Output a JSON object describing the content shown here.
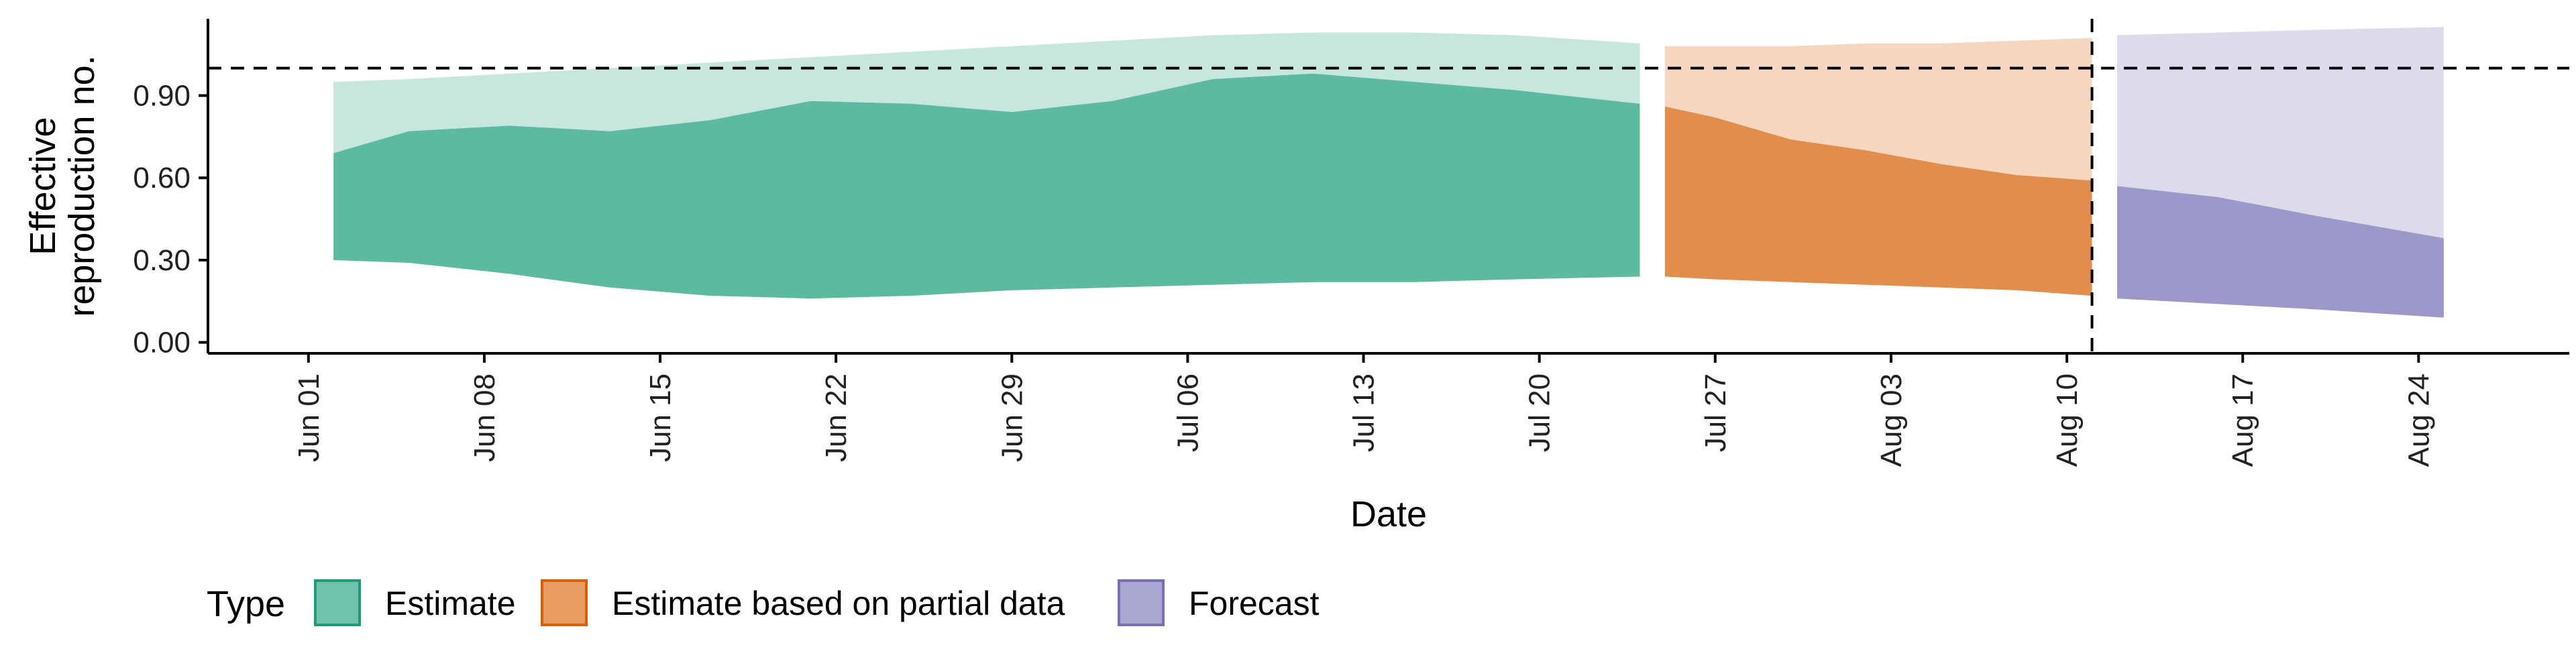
{
  "chart_data": {
    "type": "area",
    "title": "",
    "xlabel": "Date",
    "ylabel": "Effective reproduction no.",
    "ylabel_lines": [
      "Effective",
      "reproduction no."
    ],
    "xlim": [
      "2020-05-28",
      "2020-08-30"
    ],
    "ylim": [
      -0.04,
      1.18
    ],
    "x_ticks": [
      "2020-06-01",
      "2020-06-08",
      "2020-06-15",
      "2020-06-22",
      "2020-06-29",
      "2020-07-06",
      "2020-07-13",
      "2020-07-20",
      "2020-07-27",
      "2020-08-03",
      "2020-08-10",
      "2020-08-17",
      "2020-08-24"
    ],
    "x_tick_labels": [
      "Jun 01",
      "Jun 08",
      "Jun 15",
      "Jun 22",
      "Jun 29",
      "Jul 06",
      "Jul 13",
      "Jul 20",
      "Jul 27",
      "Aug 03",
      "Aug 10",
      "Aug 17",
      "Aug 24"
    ],
    "y_ticks": [
      0,
      0.3,
      0.6,
      0.9
    ],
    "y_tick_labels": [
      "0.00",
      "0.30",
      "0.60",
      "0.90"
    ],
    "reference_lines": {
      "horizontal_y": 1.0,
      "vertical_x": "2020-08-11"
    },
    "grid": false,
    "legend_placement": "bottom-left",
    "legend_title": "Type",
    "series": [
      {
        "name": "Estimate",
        "color": "#1b9e77",
        "x": [
          "2020-06-02",
          "2020-06-05",
          "2020-06-09",
          "2020-06-13",
          "2020-06-17",
          "2020-06-21",
          "2020-06-25",
          "2020-06-29",
          "2020-07-03",
          "2020-07-07",
          "2020-07-11",
          "2020-07-15",
          "2020-07-19",
          "2020-07-24"
        ],
        "inner_lower": [
          0.3,
          0.29,
          0.25,
          0.2,
          0.17,
          0.16,
          0.17,
          0.19,
          0.2,
          0.21,
          0.22,
          0.22,
          0.23,
          0.24
        ],
        "inner_upper": [
          0.69,
          0.77,
          0.79,
          0.77,
          0.81,
          0.88,
          0.87,
          0.84,
          0.88,
          0.96,
          0.98,
          0.95,
          0.92,
          0.87
        ],
        "outer_lower": [
          0.3,
          0.29,
          0.25,
          0.2,
          0.17,
          0.16,
          0.17,
          0.19,
          0.2,
          0.21,
          0.22,
          0.22,
          0.23,
          0.24
        ],
        "outer_upper": [
          0.95,
          0.96,
          0.98,
          1.0,
          1.02,
          1.04,
          1.06,
          1.08,
          1.1,
          1.12,
          1.13,
          1.13,
          1.12,
          1.09
        ]
      },
      {
        "name": "Estimate based on partial data",
        "color": "#d95f02",
        "x": [
          "2020-07-25",
          "2020-07-27",
          "2020-07-30",
          "2020-08-02",
          "2020-08-05",
          "2020-08-08",
          "2020-08-11"
        ],
        "inner_lower": [
          0.24,
          0.23,
          0.22,
          0.21,
          0.2,
          0.19,
          0.17
        ],
        "inner_upper": [
          0.86,
          0.82,
          0.74,
          0.7,
          0.65,
          0.61,
          0.59
        ],
        "outer_lower": [
          0.24,
          0.23,
          0.22,
          0.21,
          0.2,
          0.19,
          0.17
        ],
        "outer_upper": [
          1.08,
          1.08,
          1.08,
          1.09,
          1.09,
          1.1,
          1.11
        ]
      },
      {
        "name": "Forecast",
        "color": "#7570b3",
        "x": [
          "2020-08-12",
          "2020-08-16",
          "2020-08-20",
          "2020-08-25"
        ],
        "inner_lower": [
          0.16,
          0.14,
          0.12,
          0.09
        ],
        "inner_upper": [
          0.57,
          0.53,
          0.46,
          0.38
        ],
        "outer_lower": [
          0.16,
          0.14,
          0.12,
          0.09
        ],
        "outer_upper": [
          1.12,
          1.13,
          1.14,
          1.15
        ]
      }
    ]
  }
}
